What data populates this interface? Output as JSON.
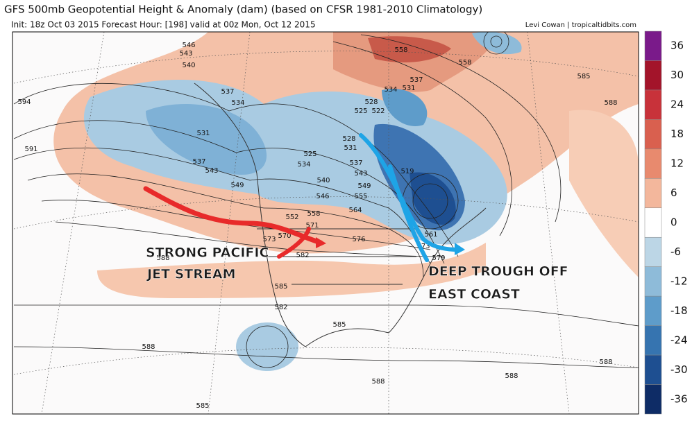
{
  "header": {
    "title": "GFS 500mb Geopotential Height & Anomaly (dam) (based on CFSR 1981-2010 Climatology)",
    "subtitle": "Init: 18z Oct 03 2015   Forecast Hour: [198]   valid at 00z Mon, Oct 12 2015",
    "credit": "Levi Cowan | tropicaltidbits.com"
  },
  "colorbar": {
    "ticks": [
      36,
      30,
      24,
      18,
      12,
      6,
      0,
      -6,
      -12,
      -18,
      -24,
      -30,
      -36
    ],
    "colors": [
      "#7a1a8a",
      "#a3142a",
      "#c8323a",
      "#d9604f",
      "#e88a6e",
      "#f3b79c",
      "#ffffff",
      "#bcd6e6",
      "#8ebbd9",
      "#5e9cca",
      "#3674b0",
      "#1e4f91",
      "#0e2c66"
    ]
  },
  "contour_labels": [
    "594",
    "591",
    "546",
    "543",
    "540",
    "537",
    "534",
    "531",
    "537",
    "543",
    "549",
    "528",
    "525",
    "522",
    "528",
    "531",
    "525",
    "534",
    "537",
    "543",
    "540",
    "546",
    "549",
    "555",
    "564",
    "558",
    "552",
    "571",
    "570",
    "573",
    "576",
    "582",
    "588",
    "585",
    "582",
    "585",
    "588",
    "588",
    "588",
    "588",
    "585",
    "558",
    "558",
    "585",
    "588",
    "537",
    "531",
    "534",
    "519",
    "573",
    "579",
    "561"
  ],
  "annotations": {
    "pacific": [
      "STRONG PACIFIC",
      "JET STREAM"
    ],
    "trough": [
      "DEEP TROUGH OFF",
      "EAST COAST"
    ]
  }
}
